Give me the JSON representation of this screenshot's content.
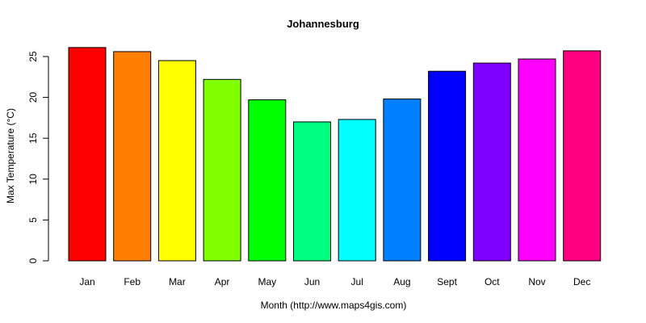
{
  "chart_data": {
    "type": "bar",
    "title": "Johannesburg",
    "xlabel": "Month (http://www.maps4gis.com)",
    "ylabel": "Max Temperature (°C)",
    "categories": [
      "Jan",
      "Feb",
      "Mar",
      "Apr",
      "May",
      "Jun",
      "Jul",
      "Aug",
      "Sept",
      "Oct",
      "Nov",
      "Dec"
    ],
    "values": [
      26.1,
      25.6,
      24.5,
      22.2,
      19.7,
      17.0,
      17.3,
      19.8,
      23.2,
      24.2,
      24.7,
      25.7
    ],
    "colors": [
      "#FF0000",
      "#FF8000",
      "#FFFF00",
      "#80FF00",
      "#00FF00",
      "#00FF80",
      "#00FFFF",
      "#0080FF",
      "#0000FF",
      "#8000FF",
      "#FF00FF",
      "#FF0080"
    ],
    "ylim": [
      0,
      26.1
    ],
    "yticks": [
      0,
      5,
      10,
      15,
      20,
      25
    ],
    "grid": false,
    "legend": null
  }
}
